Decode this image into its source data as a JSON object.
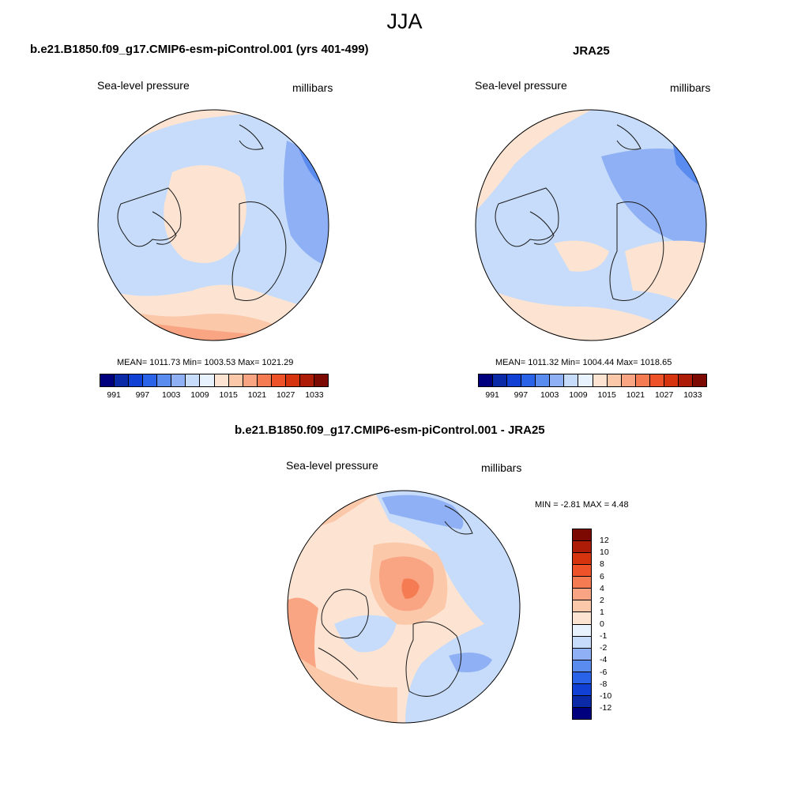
{
  "season": "JJA",
  "panel_left": {
    "title": "b.e21.B1850.f09_g17.CMIP6-esm-piControl.001 (yrs 401-499)",
    "variable": "Sea-level pressure",
    "units": "millibars",
    "stats": "MEAN= 1011.73  Min= 1003.53  Max= 1021.29"
  },
  "panel_right": {
    "title": "JRA25",
    "variable": "Sea-level pressure",
    "units": "millibars",
    "stats": "MEAN= 1011.32  Min= 1004.44  Max= 1018.65"
  },
  "panel_diff": {
    "title": "b.e21.B1850.f09_g17.CMIP6-esm-piControl.001 - JRA25",
    "variable": "Sea-level pressure",
    "units": "millibars",
    "stats": "MIN =  -2.81 MAX =   4.48"
  },
  "colorbar_abs": {
    "colors": [
      "#00007f",
      "#0a2aa8",
      "#1140d4",
      "#2a62e8",
      "#5a8cf0",
      "#8fb0f4",
      "#c6dcfa",
      "#e8f2fe",
      "#fde4d2",
      "#fbc8aa",
      "#f9a583",
      "#f57b52",
      "#ee5228",
      "#d6340f",
      "#ad1c06",
      "#7d0a02"
    ],
    "labels": [
      "991",
      "997",
      "1003",
      "1009",
      "1015",
      "1021",
      "1027",
      "1033"
    ]
  },
  "colorbar_diff": {
    "colors": [
      "#7d0a02",
      "#ad1c06",
      "#d6340f",
      "#ee5228",
      "#f57b52",
      "#f9a583",
      "#fbc8aa",
      "#fde4d2",
      "#e8f2fe",
      "#c6dcfa",
      "#8fb0f4",
      "#5a8cf0",
      "#2a62e8",
      "#1140d4",
      "#0a2aa8",
      "#00007f"
    ],
    "labels": [
      "12",
      "10",
      "8",
      "6",
      "4",
      "2",
      "1",
      "0",
      "-1",
      "-2",
      "-4",
      "-6",
      "-8",
      "-10",
      "-12"
    ]
  },
  "map_colors": {
    "blue_light": "#c6dcfa",
    "blue_mid": "#8fb0f4",
    "blue_dark": "#5a8cf0",
    "pale_blue": "#e8f2fe",
    "peach": "#fde4d2",
    "salmon": "#fbc8aa",
    "orange": "#f9a583",
    "red_orange": "#f57b52",
    "coast": "#1a1a1a"
  }
}
